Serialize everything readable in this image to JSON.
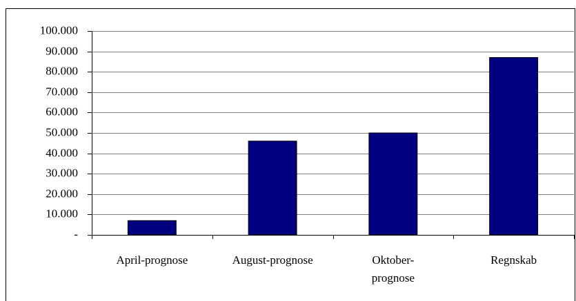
{
  "chart_data": {
    "type": "bar",
    "categories": [
      "April-prognose",
      "August-prognose",
      "Oktober-\nprognose",
      "Regnskab"
    ],
    "values": [
      7000,
      46000,
      50000,
      87000
    ],
    "color": "#000080",
    "ylim": [
      0,
      100000
    ],
    "yticks": [
      {
        "value": 0,
        "label": "-"
      },
      {
        "value": 10000,
        "label": "10.000"
      },
      {
        "value": 20000,
        "label": "20.000"
      },
      {
        "value": 30000,
        "label": "30.000"
      },
      {
        "value": 40000,
        "label": "40.000"
      },
      {
        "value": 50000,
        "label": "50.000"
      },
      {
        "value": 60000,
        "label": "60.000"
      },
      {
        "value": 70000,
        "label": "70.000"
      },
      {
        "value": 80000,
        "label": "80.000"
      },
      {
        "value": 90000,
        "label": "90.000"
      },
      {
        "value": 100000,
        "label": "100.000"
      }
    ],
    "grid": true
  }
}
